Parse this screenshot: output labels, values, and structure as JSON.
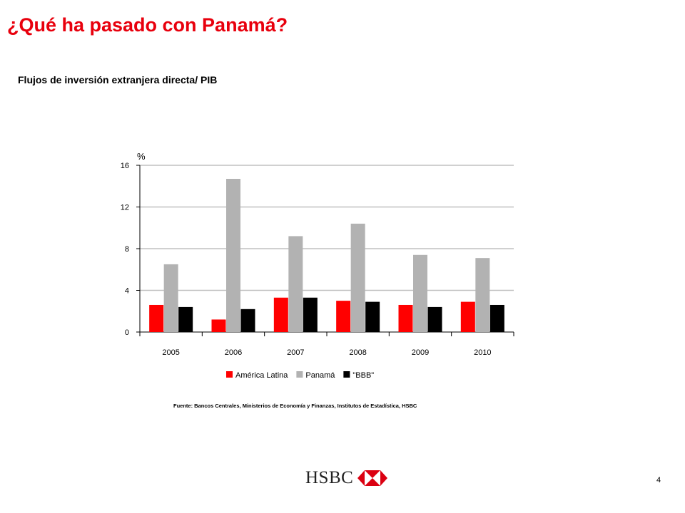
{
  "slide": {
    "title": "¿Qué ha pasado con Panamá?",
    "subtitle": "Flujos de inversión extranjera directa/ PIB",
    "source": "Fuente: Bancos Centrales, Ministerios de Economía y Finanzas, Institutos de Estadística, HSBC",
    "page_number": "4",
    "logo_text": "HSBC"
  },
  "colors": {
    "title": "#e8000d",
    "america_latina": "#ff0000",
    "panama": "#b2b2b2",
    "bbb": "#000000",
    "grid": "#c0c0c0",
    "logo_red": "#db0011"
  },
  "chart_data": {
    "type": "bar",
    "title": "Flujos de inversión extranjera directa/ PIB",
    "ylabel": "%",
    "xlabel": "",
    "categories": [
      "2005",
      "2006",
      "2007",
      "2008",
      "2009",
      "2010"
    ],
    "ylim": [
      0,
      16
    ],
    "yticks": [
      0,
      4,
      8,
      12,
      16
    ],
    "grid": true,
    "legend_position": "bottom",
    "series": [
      {
        "name": "América Latina",
        "color": "#ff0000",
        "values": [
          2.6,
          1.2,
          3.3,
          3.0,
          2.6,
          2.9
        ]
      },
      {
        "name": "Panamá",
        "color": "#b2b2b2",
        "values": [
          6.5,
          14.7,
          9.2,
          10.4,
          7.4,
          7.1
        ]
      },
      {
        "name": "\"BBB\"",
        "color": "#000000",
        "values": [
          2.4,
          2.2,
          3.3,
          2.9,
          2.4,
          2.6
        ]
      }
    ]
  }
}
